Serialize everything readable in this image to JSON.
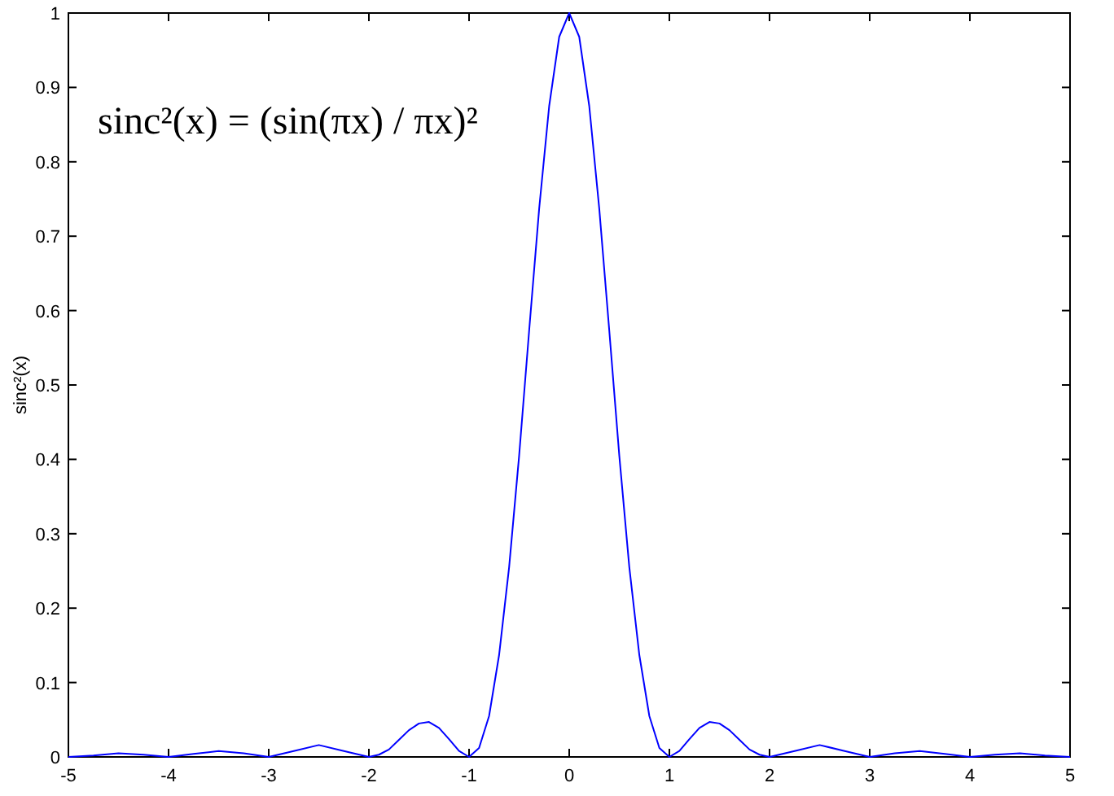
{
  "chart_data": {
    "type": "line",
    "ylabel": "sinc²(x)",
    "annotations": [
      "sinc²(x) = (sin(πx) / πx)²"
    ],
    "x": [
      -5,
      -4.75,
      -4.5,
      -4.25,
      -4,
      -3.75,
      -3.5,
      -3.25,
      -3,
      -2.75,
      -2.5,
      -2.25,
      -2,
      -1.9,
      -1.8,
      -1.7,
      -1.6,
      -1.5,
      -1.4,
      -1.3,
      -1.2,
      -1.1,
      -1,
      -0.9,
      -0.8,
      -0.7,
      -0.6,
      -0.5,
      -0.4,
      -0.3,
      -0.2,
      -0.1,
      0,
      0.1,
      0.2,
      0.3,
      0.4,
      0.5,
      0.6,
      0.7,
      0.8,
      0.9,
      1,
      1.1,
      1.2,
      1.3,
      1.4,
      1.5,
      1.6,
      1.7,
      1.8,
      1.9,
      2,
      2.25,
      2.5,
      2.75,
      3,
      3.25,
      3.5,
      3.75,
      4,
      4.25,
      4.5,
      4.75,
      5
    ],
    "series": [
      {
        "color": "#0000ff",
        "values": [
          0,
          0.002,
          0.005,
          0.003,
          0,
          0.004,
          0.008,
          0.005,
          0,
          0.008,
          0.016,
          0.008,
          0,
          0.003,
          0.01,
          0.023,
          0.036,
          0.045,
          0.047,
          0.039,
          0.024,
          0.008,
          0,
          0.012,
          0.055,
          0.137,
          0.255,
          0.405,
          0.573,
          0.737,
          0.875,
          0.968,
          1,
          0.968,
          0.875,
          0.737,
          0.573,
          0.405,
          0.255,
          0.137,
          0.055,
          0.012,
          0,
          0.008,
          0.024,
          0.039,
          0.047,
          0.045,
          0.036,
          0.023,
          0.01,
          0.003,
          0,
          0.008,
          0.016,
          0.008,
          0,
          0.005,
          0.008,
          0.004,
          0,
          0.003,
          0.005,
          0.002,
          0
        ]
      }
    ],
    "xlim": [
      -5,
      5
    ],
    "xticks": [
      -5,
      -4,
      -3,
      -2,
      -1,
      0,
      1,
      2,
      3,
      4,
      5
    ],
    "ylim": [
      0,
      1
    ],
    "yticks": [
      0,
      0.1,
      0.2,
      0.3,
      0.4,
      0.5,
      0.6,
      0.7,
      0.8,
      0.9,
      1
    ],
    "grid": false,
    "marker": "none",
    "line_style": "solid"
  }
}
